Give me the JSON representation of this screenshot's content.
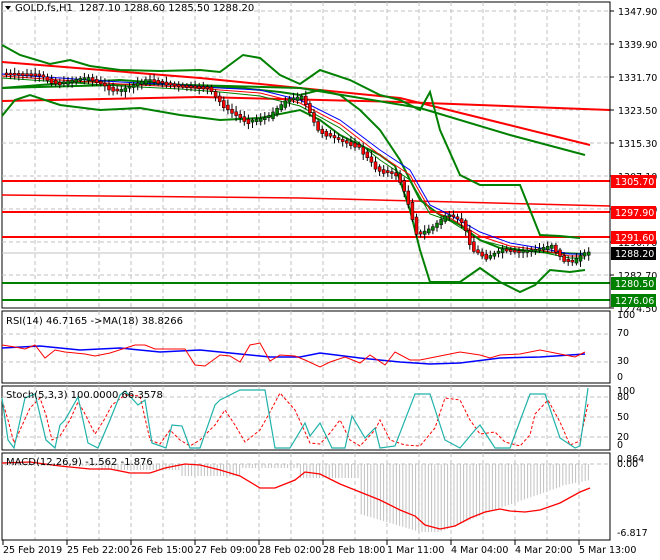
{
  "header": {
    "symbol": "GOLD.fs,H1",
    "ohlc": "1287.10 1288.60 1285.50 1288.20"
  },
  "price_axis": {
    "ticks": [
      "1347.90",
      "1339.90",
      "1331.70",
      "1323.50",
      "1315.30",
      "1307.10",
      "1298.90",
      "1290.70",
      "1282.70",
      "1274.50"
    ],
    "current_price": "1288.20",
    "levels": [
      {
        "label": "1305.70",
        "color": "#ff0000"
      },
      {
        "label": "1297.90",
        "color": "#ff0000"
      },
      {
        "label": "1291.60",
        "color": "#ff0000"
      },
      {
        "label": "1280.50",
        "color": "#008000"
      },
      {
        "label": "1276.06",
        "color": "#008000"
      }
    ]
  },
  "rsi": {
    "title": "RSI(14) 46.7165  ->MA(18) 38.8266",
    "ticks": [
      "100",
      "70",
      "30",
      "0"
    ]
  },
  "stoch": {
    "title": "Stoch(5,3,3) 100.0000 66.3578",
    "ticks": [
      "100",
      "80",
      "50",
      "20",
      "0"
    ]
  },
  "macd": {
    "title": "MACD(12,26,9) -1.562 -1.876",
    "ticks": [
      "0.864",
      "0.00",
      "-6.817"
    ]
  },
  "time_axis": {
    "labels": [
      "25 Feb 2019",
      "25 Feb 22:00",
      "26 Feb 15:00",
      "27 Feb 09:00",
      "28 Feb 02:00",
      "28 Feb 18:00",
      "1 Mar 11:00",
      "4 Mar 04:00",
      "4 Mar 20:00",
      "5 Mar 13:00"
    ]
  },
  "colors": {
    "bull_candle": "#008000",
    "bear_candle": "#ff0000",
    "bollinger": "#008000",
    "trend_red": "#ff0000",
    "rsi_line": "#ff0000",
    "rsi_ma": "#0000ff",
    "stoch_main": "#20b2aa",
    "stoch_signal": "#ff0000",
    "macd_hist": "#c0c0c0",
    "macd_signal": "#ff0000",
    "current_price_tag": "#000000"
  },
  "chart_data": {
    "type": "candlestick",
    "title": "GOLD.fs,H1",
    "symbol": "GOLD.fs",
    "timeframe": "H1",
    "last_bar": {
      "open": 1287.1,
      "high": 1288.6,
      "low": 1285.5,
      "close": 1288.2
    },
    "ylim": [
      1274.5,
      1347.9
    ],
    "x_tick_labels": [
      "25 Feb 2019",
      "25 Feb 22:00",
      "26 Feb 15:00",
      "27 Feb 09:00",
      "28 Feb 02:00",
      "28 Feb 18:00",
      "1 Mar 11:00",
      "4 Mar 04:00",
      "4 Mar 20:00",
      "5 Mar 13:00"
    ],
    "y_tick_labels": [
      1347.9,
      1339.9,
      1331.7,
      1323.5,
      1315.3,
      1307.1,
      1298.9,
      1290.7,
      1282.7,
      1274.5
    ],
    "horizontal_levels": [
      1305.7,
      1297.9,
      1291.6,
      1280.5,
      1276.06
    ],
    "approx_close_path": [
      {
        "x": "25 Feb 2019",
        "close": 1333
      },
      {
        "x": "25 Feb 22:00",
        "close": 1331
      },
      {
        "x": "26 Feb 15:00",
        "close": 1330
      },
      {
        "x": "27 Feb 09:00",
        "close": 1327
      },
      {
        "x": "28 Feb 02:00",
        "close": 1322
      },
      {
        "x": "28 Feb 18:00",
        "close": 1314
      },
      {
        "x": "1 Mar 11:00",
        "close": 1306
      },
      {
        "x": "4 Mar 04:00",
        "close": 1290
      },
      {
        "x": "4 Mar 20:00",
        "close": 1290
      },
      {
        "x": "5 Mar 13:00",
        "close": 1288.2
      }
    ],
    "indicators": [
      {
        "name": "RSI(14)",
        "value": 46.7165,
        "ma_name": "MA(18)",
        "ma_value": 38.8266,
        "levels": [
          100,
          70,
          30,
          0
        ]
      },
      {
        "name": "Stoch(5,3,3)",
        "main": 100.0,
        "signal": 66.3578,
        "levels": [
          100,
          80,
          50,
          20,
          0
        ]
      },
      {
        "name": "MACD(12,26,9)",
        "main": -1.562,
        "signal": -1.876,
        "ylim": [
          -6.817,
          0.864
        ]
      }
    ]
  }
}
